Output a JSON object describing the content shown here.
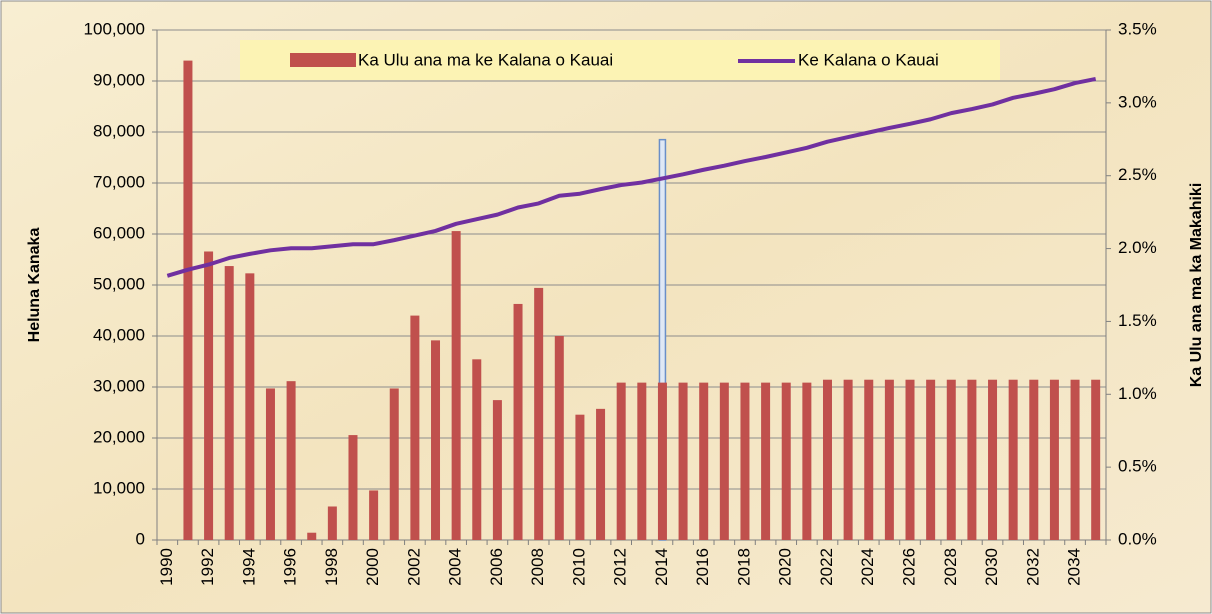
{
  "chart_data": {
    "type": "bar-line",
    "y_label": "Heluna Kanaka",
    "y2_label": "Ka Ulu ana ma ka Makahiki",
    "categories": [
      "1990",
      null,
      "1992",
      null,
      "1994",
      null,
      "1996",
      null,
      "1998",
      null,
      "2000",
      null,
      "2002",
      null,
      "2004",
      null,
      "2006",
      null,
      "2008",
      null,
      "2010",
      null,
      "2012",
      null,
      "2014",
      null,
      "2016",
      null,
      "2018",
      null,
      "2020",
      null,
      "2022",
      null,
      "2024",
      null,
      "2026",
      null,
      "2028",
      null,
      "2030",
      null,
      "2032",
      null,
      "2034",
      null
    ],
    "series": [
      {
        "name": "Ka Ulu ana ma ke Kalana o Kauai",
        "color": "#c0504d",
        "axis": "y2",
        "kind": "bar",
        "values": [
          null,
          3.29,
          1.98,
          1.88,
          1.83,
          1.04,
          1.09,
          0.05,
          0.23,
          0.72,
          0.34,
          1.04,
          1.54,
          1.37,
          2.12,
          1.24,
          0.96,
          1.62,
          1.73,
          1.4,
          0.86,
          0.9,
          1.08,
          1.08,
          1.08,
          1.08,
          1.08,
          1.08,
          1.08,
          1.08,
          1.08,
          1.08,
          1.1,
          1.1,
          1.1,
          1.1,
          1.1,
          1.1,
          1.1,
          1.1,
          1.1,
          1.1,
          1.1,
          1.1,
          1.1,
          1.1
        ]
      },
      {
        "name": "Ke Kalana o Kauai",
        "color": "#7030a0",
        "kind": "line",
        "values": [
          51800,
          53000,
          54000,
          55300,
          56100,
          56800,
          57200,
          57200,
          57600,
          58000,
          58000,
          58800,
          59700,
          60600,
          62000,
          62900,
          63800,
          65200,
          66000,
          67500,
          67900,
          68800,
          69600,
          70100,
          70900,
          71700,
          72600,
          73400,
          74300,
          75100,
          76000,
          76900,
          78100,
          79000,
          79900,
          80800,
          81600,
          82500,
          83700,
          84500,
          85400,
          86700,
          87500,
          88400,
          89600,
          90400
        ]
      }
    ],
    "ylim": [
      0,
      100000
    ],
    "yticks": [
      0,
      {
        "value": 10000,
        "label": "10,000"
      },
      {
        "value": 20000,
        "label": "20,000"
      },
      {
        "value": 30000,
        "label": "30,000"
      },
      {
        "value": 40000,
        "label": "40,000"
      },
      {
        "value": 50000,
        "label": "50,000"
      },
      {
        "value": 60000,
        "label": "60,000"
      },
      {
        "value": 70000,
        "label": "70,000"
      },
      {
        "value": 80000,
        "label": "80,000"
      },
      {
        "value": 90000,
        "label": "90,000"
      },
      {
        "value": 100000,
        "label": "100,000"
      }
    ],
    "y2lim": [
      0,
      3.5
    ],
    "y2ticks": [
      {
        "value": 0,
        "label": "0.0%"
      },
      {
        "value": 0.5,
        "label": "0.5%"
      },
      {
        "value": 1,
        "label": "1.0%"
      },
      {
        "value": 1.5,
        "label": "1.5%"
      },
      {
        "value": 2,
        "label": "2.0%"
      },
      {
        "value": 2.5,
        "label": "2.5%"
      },
      {
        "value": 3,
        "label": "3.0%"
      },
      {
        "value": 3.5,
        "label": "3.5%"
      }
    ],
    "grid": true
  }
}
